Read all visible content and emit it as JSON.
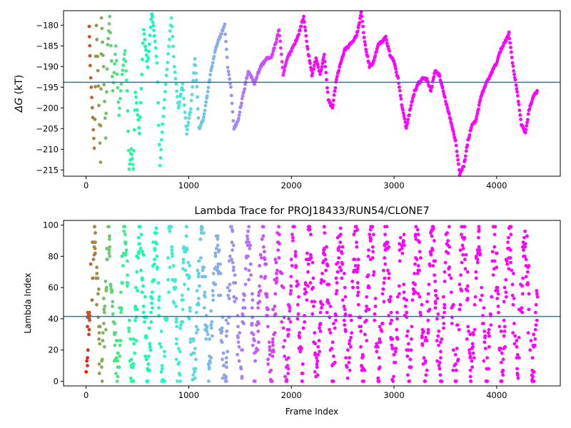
{
  "chart_data": [
    {
      "type": "scatter",
      "title": "",
      "xlabel": "",
      "ylabel": "ΔG (kT)",
      "ylabel_symbol": "ΔG",
      "ylabel_unit": "(kT)",
      "xlim": [
        -220,
        4620
      ],
      "ylim": [
        -216.5,
        -176.5
      ],
      "xticks": [
        0,
        1000,
        2000,
        3000,
        4000
      ],
      "yticks": [
        -215,
        -210,
        -205,
        -200,
        -195,
        -190,
        -185,
        -180
      ],
      "hline": -193.8,
      "hline_color": "#1f77b4",
      "colormap": "rainbow (red at frame 0 → violet at late frames)",
      "trace_points": [
        [
          30,
          -180
        ],
        [
          40,
          -190
        ],
        [
          60,
          -200
        ],
        [
          80,
          -210
        ],
        [
          100,
          -180
        ],
        [
          120,
          -195
        ],
        [
          140,
          -213
        ],
        [
          150,
          -178
        ],
        [
          170,
          -190
        ],
        [
          190,
          -207
        ],
        [
          210,
          -185
        ],
        [
          230,
          -178
        ],
        [
          260,
          -196
        ],
        [
          290,
          -185
        ],
        [
          320,
          -202
        ],
        [
          350,
          -192
        ],
        [
          380,
          -186
        ],
        [
          400,
          -196
        ],
        [
          420,
          -215
        ],
        [
          440,
          -210
        ],
        [
          460,
          -215
        ],
        [
          480,
          -196
        ],
        [
          520,
          -206
        ],
        [
          560,
          -181
        ],
        [
          600,
          -190
        ],
        [
          640,
          -177
        ],
        [
          660,
          -181
        ],
        [
          690,
          -189
        ],
        [
          720,
          -214
        ],
        [
          740,
          -206
        ],
        [
          770,
          -196
        ],
        [
          800,
          -187
        ],
        [
          830,
          -178
        ],
        [
          860,
          -190
        ],
        [
          900,
          -200
        ],
        [
          940,
          -194
        ],
        [
          980,
          -206
        ],
        [
          1020,
          -200
        ],
        [
          1060,
          -188
        ],
        [
          1080,
          -195
        ],
        [
          1100,
          -205
        ],
        [
          1140,
          -203
        ],
        [
          1180,
          -197
        ],
        [
          1210,
          -192
        ],
        [
          1260,
          -186
        ],
        [
          1300,
          -183
        ],
        [
          1350,
          -180
        ],
        [
          1380,
          -190
        ],
        [
          1410,
          -195
        ],
        [
          1440,
          -205
        ],
        [
          1480,
          -203
        ],
        [
          1520,
          -198
        ],
        [
          1580,
          -191
        ],
        [
          1640,
          -194
        ],
        [
          1700,
          -190
        ],
        [
          1760,
          -188
        ],
        [
          1800,
          -188
        ],
        [
          1840,
          -185
        ],
        [
          1880,
          -181
        ],
        [
          1920,
          -192
        ],
        [
          1960,
          -188
        ],
        [
          2000,
          -186
        ],
        [
          2060,
          -183
        ],
        [
          2120,
          -178
        ],
        [
          2160,
          -186
        ],
        [
          2200,
          -192
        ],
        [
          2240,
          -188
        ],
        [
          2280,
          -192
        ],
        [
          2320,
          -187
        ],
        [
          2360,
          -198
        ],
        [
          2400,
          -200
        ],
        [
          2440,
          -193
        ],
        [
          2480,
          -189
        ],
        [
          2520,
          -186
        ],
        [
          2560,
          -185
        ],
        [
          2600,
          -184
        ],
        [
          2640,
          -182
        ],
        [
          2680,
          -177
        ],
        [
          2720,
          -185
        ],
        [
          2760,
          -190
        ],
        [
          2800,
          -189
        ],
        [
          2840,
          -185
        ],
        [
          2880,
          -184
        ],
        [
          2920,
          -183
        ],
        [
          2960,
          -187
        ],
        [
          3000,
          -189
        ],
        [
          3040,
          -193
        ],
        [
          3080,
          -200
        ],
        [
          3120,
          -205
        ],
        [
          3160,
          -200
        ],
        [
          3200,
          -196
        ],
        [
          3240,
          -194
        ],
        [
          3280,
          -193
        ],
        [
          3320,
          -193
        ],
        [
          3360,
          -196
        ],
        [
          3400,
          -191
        ],
        [
          3440,
          -192
        ],
        [
          3480,
          -196
        ],
        [
          3520,
          -200
        ],
        [
          3560,
          -204
        ],
        [
          3600,
          -208
        ],
        [
          3640,
          -216
        ],
        [
          3680,
          -214
        ],
        [
          3720,
          -208
        ],
        [
          3760,
          -204
        ],
        [
          3800,
          -203
        ],
        [
          3840,
          -198
        ],
        [
          3880,
          -195
        ],
        [
          3920,
          -193
        ],
        [
          3960,
          -191
        ],
        [
          4000,
          -189
        ],
        [
          4040,
          -186
        ],
        [
          4080,
          -184
        ],
        [
          4120,
          -182
        ],
        [
          4160,
          -190
        ],
        [
          4200,
          -196
        ],
        [
          4240,
          -204
        ],
        [
          4280,
          -206
        ],
        [
          4320,
          -200
        ],
        [
          4360,
          -197
        ],
        [
          4400,
          -196
        ]
      ]
    },
    {
      "type": "scatter",
      "title": "Lambda Trace for PROJ18433/RUN54/CLONE7",
      "xlabel": "Frame Index",
      "ylabel": "Lambda Index",
      "xlim": [
        -220,
        4620
      ],
      "ylim": [
        -3,
        103
      ],
      "xticks": [
        0,
        1000,
        2000,
        3000,
        4000
      ],
      "yticks": [
        0,
        20,
        40,
        60,
        80,
        100
      ],
      "hline": 41.5,
      "hline_color": "#1f77b4",
      "colormap": "rainbow (red at frame 0 → violet at late frames)",
      "sweep_period_frames": 150,
      "frame_count": 4400,
      "lambda_range": [
        0,
        99
      ]
    }
  ]
}
